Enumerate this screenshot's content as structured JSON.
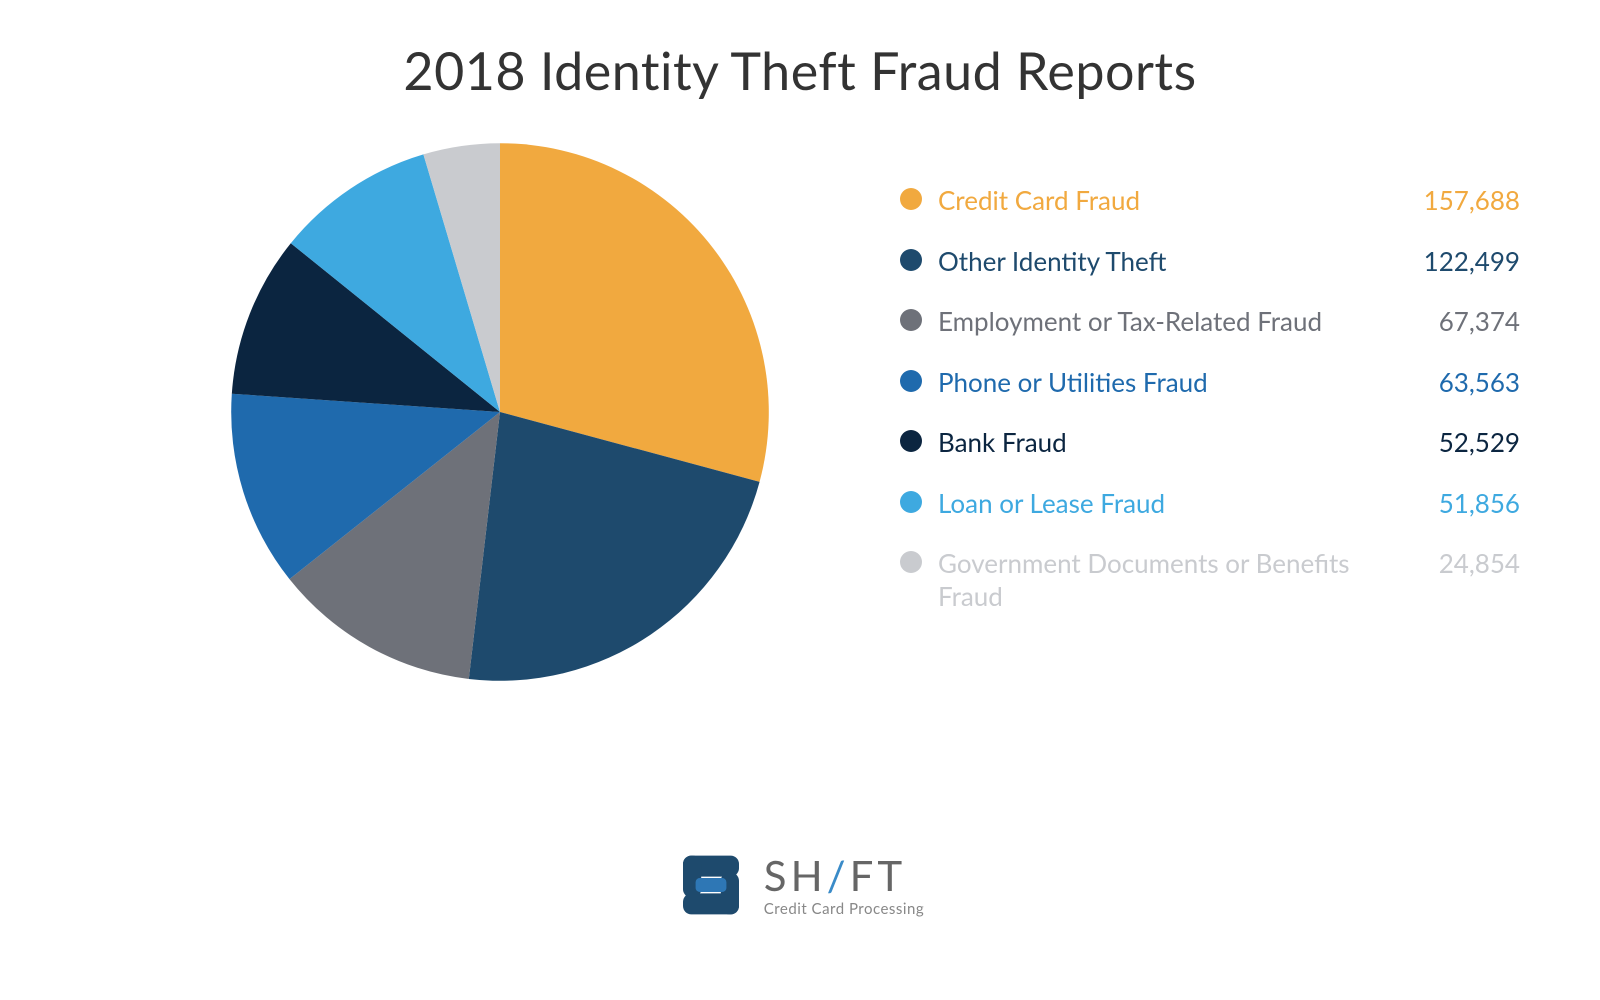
{
  "title": "2018 Identity Theft Fraud Reports",
  "chart": {
    "type": "pie",
    "background_color": "#ffffff",
    "title_fontsize": 52,
    "title_color": "#333333",
    "legend_fontsize": 26,
    "pie_start_angle_deg": -90,
    "slices": [
      {
        "label": "Credit Card Fraud",
        "value": 157688,
        "color": "#f1a93f",
        "text_color": "#f1a93f"
      },
      {
        "label": "Other Identity Theft",
        "value": 122499,
        "color": "#1e4a6d",
        "text_color": "#1e4a6d"
      },
      {
        "label": "Employment or Tax-Related Fraud",
        "value": 67374,
        "color": "#6e7179",
        "text_color": "#6e7179"
      },
      {
        "label": "Phone or Utilities Fraud",
        "value": 63563,
        "color": "#1f6aad",
        "text_color": "#1f6aad"
      },
      {
        "label": "Bank Fraud",
        "value": 52529,
        "color": "#0b2540",
        "text_color": "#0b2540"
      },
      {
        "label": "Loan or Lease Fraud",
        "value": 51856,
        "color": "#3ea9e0",
        "text_color": "#3ea9e0"
      },
      {
        "label": "Government Documents or Benefits Fraud",
        "value": 24854,
        "color": "#c9cbcf",
        "text_color": "#c9cbcf"
      }
    ]
  },
  "brand": {
    "name_pre": "SH",
    "name_slash": "/",
    "name_post": "FT",
    "tagline": "Credit Card Processing",
    "mark_outer_color": "#1e4a6d",
    "mark_inner_color": "#2e77b5"
  }
}
